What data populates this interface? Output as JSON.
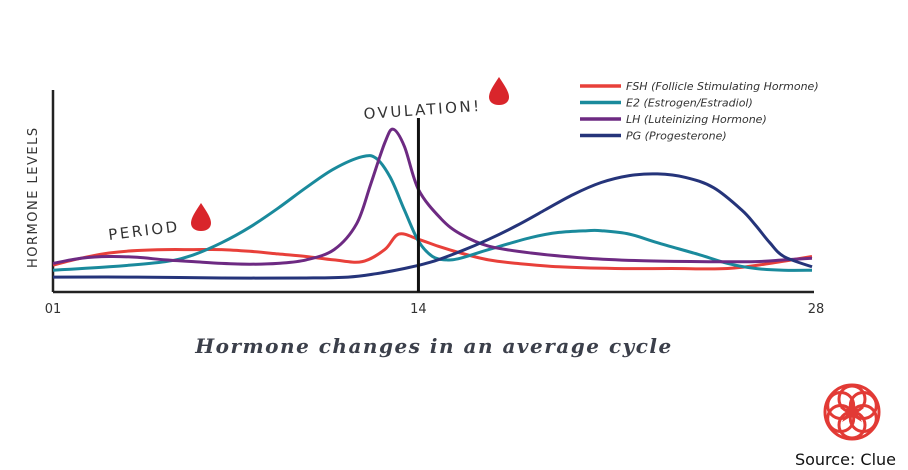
{
  "caption": "Hormone changes in an average cycle",
  "source": "Source: Clue",
  "annotations": {
    "ovulation": "OVULATION!",
    "period": "PERIOD"
  },
  "colors": {
    "fsh": "#e8403a",
    "e2": "#1a8a9c",
    "lh": "#6d2a82",
    "pg": "#25347a",
    "drop": "#d9252b",
    "axis": "#222222"
  },
  "chart_data": {
    "type": "line",
    "ylabel": "HORMONE LEVELS",
    "xlabel": "",
    "xlim": [
      1,
      28
    ],
    "x_ticks": [
      "01",
      "14",
      "28"
    ],
    "x_tick_values": [
      1,
      14,
      28
    ],
    "marker_line_x": 14,
    "ylim": [
      0,
      100
    ],
    "series": [
      {
        "name": "FSH (Follicle Stimulating Hormone)",
        "color": "#e8403a",
        "x": [
          1,
          2,
          3,
          4,
          5,
          6,
          7,
          8,
          9,
          10,
          11,
          12,
          12.8,
          13.3,
          14,
          14.7,
          15.5,
          16.5,
          17.5,
          19,
          21,
          23,
          25,
          26.5,
          28
        ],
        "y": [
          11,
          15,
          18,
          19.5,
          20,
          20,
          20,
          19,
          17.5,
          16,
          14,
          13,
          20,
          29,
          26,
          22,
          18,
          14,
          12,
          10,
          9,
          9,
          9,
          12,
          16
        ]
      },
      {
        "name": "E2 (Estrogen/Estradiol)",
        "color": "#1a8a9c",
        "x": [
          1,
          3,
          5,
          6,
          7,
          8,
          9,
          10,
          11,
          12,
          12.5,
          13,
          13.5,
          14,
          14.5,
          15,
          15.5,
          16.5,
          18,
          19,
          20,
          20.5,
          21.5,
          22.5,
          24,
          25,
          26,
          27,
          28
        ],
        "y": [
          8,
          10,
          13,
          17,
          24,
          33,
          44,
          56,
          67,
          74,
          73,
          62,
          43,
          25,
          16,
          14,
          15,
          20,
          27,
          30,
          31,
          31,
          29,
          24,
          17,
          12,
          9,
          8,
          8
        ]
      },
      {
        "name": "LH (Luteinizing Hormone)",
        "color": "#6d2a82",
        "x": [
          1,
          2,
          3,
          4,
          5,
          6,
          7,
          8,
          9,
          10,
          11,
          11.8,
          12.3,
          12.8,
          13.1,
          13.5,
          14,
          14.8,
          15.5,
          16.5,
          18,
          20,
          22,
          24,
          26,
          27,
          28
        ],
        "y": [
          12,
          15,
          16,
          15.5,
          14,
          13,
          12,
          11.5,
          12,
          14,
          20,
          35,
          58,
          82,
          90,
          80,
          55,
          38,
          29,
          22,
          18,
          15,
          13.5,
          13,
          13,
          14,
          15
        ]
      },
      {
        "name": "PG (Progesterone)",
        "color": "#25347a",
        "x": [
          1,
          4,
          7,
          10,
          11.5,
          12.5,
          13.5,
          14.5,
          15.5,
          16.5,
          17.5,
          18.5,
          19.5,
          20.5,
          21.5,
          22.5,
          23.5,
          24.5,
          25.5,
          26,
          26.5,
          27,
          28
        ],
        "y": [
          4,
          4,
          3.5,
          3.5,
          4,
          6,
          9,
          13,
          19,
          26,
          34,
          43,
          52,
          59,
          63,
          64,
          62,
          56,
          43,
          34,
          24,
          16,
          10
        ]
      }
    ]
  }
}
